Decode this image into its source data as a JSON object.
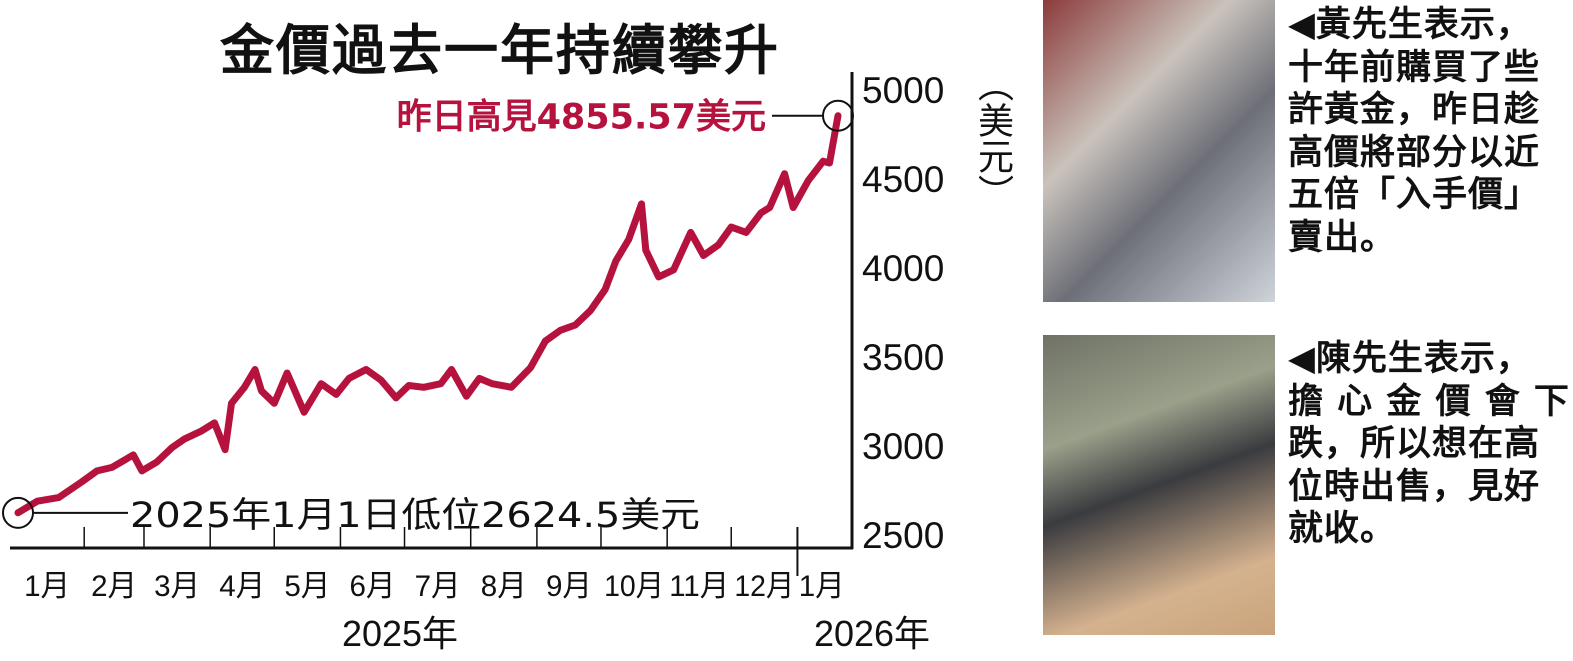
{
  "chart_data": {
    "type": "line",
    "title": "金價過去一年持續攀升",
    "ylabel": "（美元）",
    "ylim": [
      2500,
      5000
    ],
    "yticks": [
      "5000",
      "4500",
      "4000",
      "3500",
      "3000",
      "2500"
    ],
    "xtick_labels": [
      "1月",
      "2月",
      "3月",
      "4月",
      "5月",
      "6月",
      "7月",
      "8月",
      "9月",
      "10月",
      "11月",
      "12月",
      "1月"
    ],
    "year_labels": [
      "2025年",
      "2026年"
    ],
    "grid": false,
    "line_color": "#b5123e",
    "series": [
      {
        "x": [
          "2025-01-01",
          "2025-01-10",
          "2025-01-20",
          "2025-01-31",
          "2025-02-07",
          "2025-02-14",
          "2025-02-24",
          "2025-02-28",
          "2025-03-07",
          "2025-03-14",
          "2025-03-20",
          "2025-03-28",
          "2025-04-03",
          "2025-04-08",
          "2025-04-11",
          "2025-04-17",
          "2025-04-22",
          "2025-04-25",
          "2025-05-01",
          "2025-05-07",
          "2025-05-15",
          "2025-05-23",
          "2025-05-30",
          "2025-06-05",
          "2025-06-13",
          "2025-06-20",
          "2025-06-27",
          "2025-07-03",
          "2025-07-10",
          "2025-07-18",
          "2025-07-23",
          "2025-07-30",
          "2025-08-05",
          "2025-08-11",
          "2025-08-20",
          "2025-08-29",
          "2025-09-05",
          "2025-09-12",
          "2025-09-19",
          "2025-09-26",
          "2025-10-03",
          "2025-10-08",
          "2025-10-14",
          "2025-10-20",
          "2025-10-22",
          "2025-10-28",
          "2025-11-04",
          "2025-11-12",
          "2025-11-18",
          "2025-11-25",
          "2025-12-01",
          "2025-12-08",
          "2025-12-15",
          "2025-12-19",
          "2025-12-26",
          "2025-12-30",
          "2026-01-06",
          "2026-01-13",
          "2026-01-16",
          "2026-01-20"
        ],
        "y": [
          2624.5,
          2690,
          2710,
          2800,
          2860,
          2880,
          2950,
          2860,
          2910,
          2990,
          3040,
          3085,
          3130,
          2980,
          3240,
          3330,
          3430,
          3310,
          3240,
          3410,
          3190,
          3350,
          3290,
          3380,
          3430,
          3370,
          3270,
          3340,
          3330,
          3350,
          3430,
          3280,
          3380,
          3350,
          3330,
          3440,
          3590,
          3650,
          3680,
          3760,
          3880,
          4040,
          4160,
          4360,
          4100,
          3950,
          3990,
          4200,
          4070,
          4130,
          4230,
          4200,
          4310,
          4340,
          4530,
          4340,
          4490,
          4600,
          4590,
          4855.57
        ]
      }
    ],
    "annotations": {
      "high": "昨日高見4855.57美元",
      "low": "2025年1月1日低位2624.5美元"
    }
  },
  "captions": [
    "◀黃先生表示，\n十年前購買了些\n許黃金，昨日趁\n高價將部分以近\n五倍「入手價」\n賣出。",
    "◀陳先生表示，\n擔 心 金 價 會 下\n跌，所以想在高\n位時出售，見好\n就收。"
  ]
}
